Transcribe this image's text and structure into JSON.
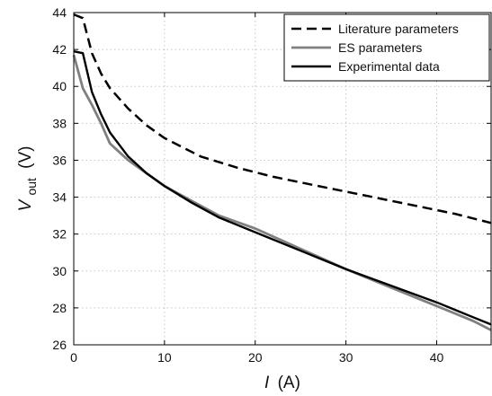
{
  "chart_data": {
    "type": "line",
    "title": "",
    "xlabel": {
      "var": "I",
      "unit": "(A)"
    },
    "ylabel": {
      "var": "V",
      "sub": "out",
      "unit": "(V)"
    },
    "xlim": [
      0,
      46
    ],
    "ylim": [
      26,
      44
    ],
    "x_ticks": [
      "0",
      "10",
      "20",
      "30",
      "40"
    ],
    "y_ticks": [
      "26",
      "28",
      "30",
      "32",
      "34",
      "36",
      "38",
      "40",
      "42",
      "44"
    ],
    "grid": true,
    "legend_position": "top-right",
    "series": [
      {
        "name": "Literature parameters",
        "color": "#000000",
        "dash": "dashed",
        "points": [
          [
            0,
            43.9
          ],
          [
            1,
            43.7
          ],
          [
            2,
            41.8
          ],
          [
            3,
            40.7
          ],
          [
            4,
            39.9
          ],
          [
            6,
            38.8
          ],
          [
            8,
            37.9
          ],
          [
            10,
            37.2
          ],
          [
            14,
            36.2
          ],
          [
            18,
            35.6
          ],
          [
            22,
            35.1
          ],
          [
            26,
            34.7
          ],
          [
            30,
            34.3
          ],
          [
            34,
            33.9
          ],
          [
            38,
            33.5
          ],
          [
            42,
            33.1
          ],
          [
            46,
            32.6
          ]
        ]
      },
      {
        "name": "ES parameters",
        "color": "#808080",
        "dash": "solid",
        "points": [
          [
            0,
            41.7
          ],
          [
            1,
            39.9
          ],
          [
            2,
            39.0
          ],
          [
            3,
            38.0
          ],
          [
            4,
            36.9
          ],
          [
            6,
            36.0
          ],
          [
            8,
            35.3
          ],
          [
            10,
            34.6
          ],
          [
            13,
            33.8
          ],
          [
            16,
            33.0
          ],
          [
            20,
            32.3
          ],
          [
            25,
            31.2
          ],
          [
            30,
            30.1
          ],
          [
            35,
            29.1
          ],
          [
            40,
            28.1
          ],
          [
            44,
            27.3
          ],
          [
            46,
            26.8
          ]
        ]
      },
      {
        "name": "Experimental data",
        "color": "#000000",
        "dash": "solid",
        "points": [
          [
            0,
            41.9
          ],
          [
            1,
            41.8
          ],
          [
            2,
            39.7
          ],
          [
            3,
            38.5
          ],
          [
            4,
            37.5
          ],
          [
            6,
            36.2
          ],
          [
            8,
            35.3
          ],
          [
            10,
            34.6
          ],
          [
            13,
            33.7
          ],
          [
            16,
            32.9
          ],
          [
            20,
            32.1
          ],
          [
            25,
            31.1
          ],
          [
            30,
            30.1
          ],
          [
            35,
            29.2
          ],
          [
            40,
            28.3
          ],
          [
            44,
            27.5
          ],
          [
            46,
            27.1
          ]
        ]
      }
    ]
  }
}
